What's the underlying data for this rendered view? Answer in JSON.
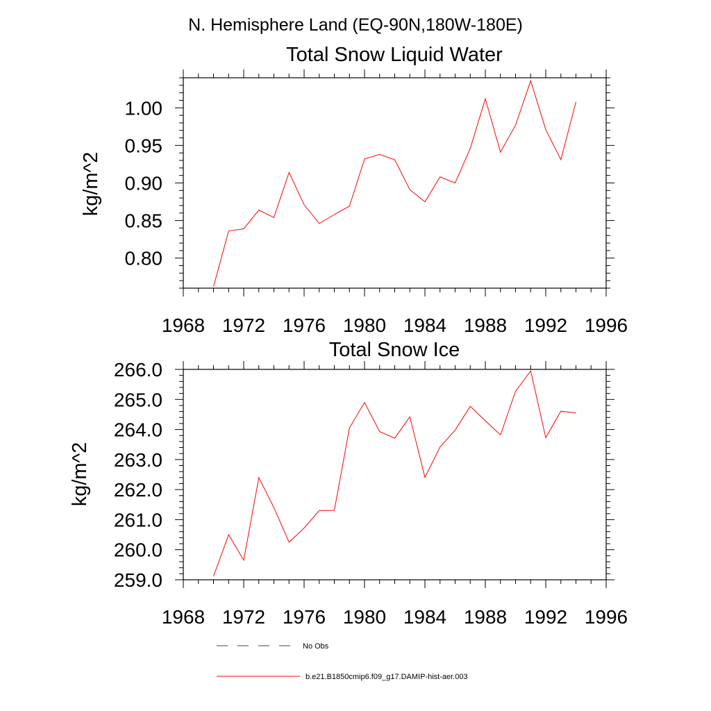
{
  "figure": {
    "title": "N. Hemisphere Land (EQ-90N,180W-180E)"
  },
  "chart_data": [
    {
      "type": "line",
      "title": "Total Snow Liquid Water",
      "xlabel": "",
      "ylabel": "kg/m^2",
      "xlim": [
        1968,
        1996
      ],
      "ylim": [
        0.76,
        1.04
      ],
      "x_ticks": [
        "1968",
        "1972",
        "1976",
        "1980",
        "1984",
        "1988",
        "1992",
        "1996"
      ],
      "y_ticks": [
        "0.80",
        "0.85",
        "0.90",
        "0.95",
        "1.00"
      ],
      "series": [
        {
          "name": "b.e21.B1850cmip6.f09_g17.DAMIP-hist-aer.003",
          "color": "#ff0000",
          "x": [
            1970,
            1971,
            1972,
            1973,
            1974,
            1975,
            1976,
            1977,
            1978,
            1979,
            1980,
            1981,
            1982,
            1983,
            1984,
            1985,
            1986,
            1987,
            1988,
            1989,
            1990,
            1991,
            1992,
            1993,
            1994
          ],
          "y": [
            0.762,
            0.836,
            0.839,
            0.864,
            0.854,
            0.914,
            0.871,
            0.846,
            0.858,
            0.869,
            0.932,
            0.938,
            0.931,
            0.891,
            0.875,
            0.908,
            0.9,
            0.946,
            1.012,
            0.941,
            0.977,
            1.036,
            0.971,
            0.931,
            1.008
          ]
        }
      ]
    },
    {
      "type": "line",
      "title": "Total Snow Ice",
      "xlabel": "",
      "ylabel": "kg/m^2",
      "xlim": [
        1968,
        1996
      ],
      "ylim": [
        259.0,
        266.0
      ],
      "x_ticks": [
        "1968",
        "1972",
        "1976",
        "1980",
        "1984",
        "1988",
        "1992",
        "1996"
      ],
      "y_ticks": [
        "259.0",
        "260.0",
        "261.0",
        "262.0",
        "263.0",
        "264.0",
        "265.0",
        "266.0"
      ],
      "series": [
        {
          "name": "b.e21.B1850cmip6.f09_g17.DAMIP-hist-aer.003",
          "color": "#ff0000",
          "x": [
            1970,
            1971,
            1972,
            1973,
            1974,
            1975,
            1976,
            1977,
            1978,
            1979,
            1980,
            1981,
            1982,
            1983,
            1984,
            1985,
            1986,
            1987,
            1988,
            1989,
            1990,
            1991,
            1992,
            1993,
            1994
          ],
          "y": [
            259.12,
            260.5,
            259.65,
            262.4,
            261.4,
            260.25,
            260.72,
            261.3,
            261.31,
            264.05,
            264.9,
            263.93,
            263.71,
            264.42,
            262.41,
            263.42,
            263.98,
            264.77,
            264.29,
            263.82,
            265.27,
            265.95,
            263.73,
            264.61,
            264.55
          ]
        }
      ]
    }
  ],
  "legend": {
    "items": [
      {
        "label": "No Obs",
        "style": "dashed",
        "color": "#3b3b6e"
      },
      {
        "label": "b.e21.B1850cmip6.f09_g17.DAMIP-hist-aer.003",
        "style": "solid",
        "color": "#ff0000"
      }
    ]
  }
}
